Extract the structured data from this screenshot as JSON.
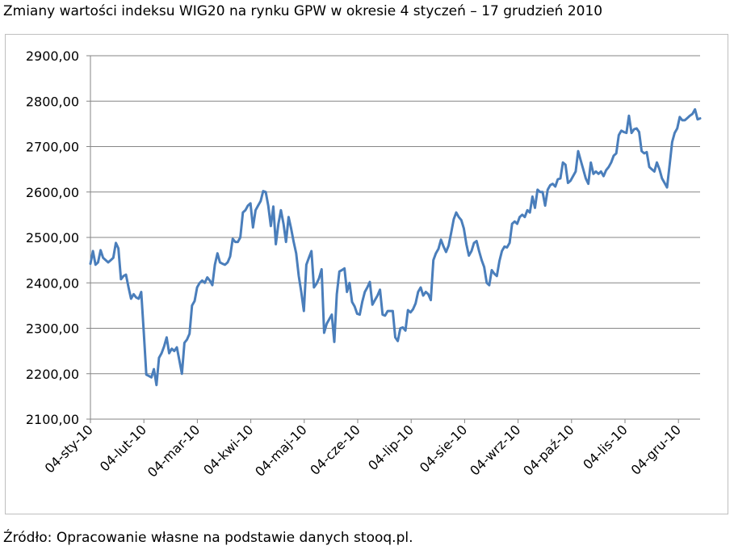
{
  "title": "Zmiany wartości indeksu WIG20 na rynku GPW w okresie 4 styczeń – 17 grudzień 2010",
  "source": "Źródło: Opracowanie własne na podstawie danych stooq.pl.",
  "colors": {
    "line": "#4a7ebb",
    "grid": "#868686",
    "axis": "#868686"
  },
  "chart_data": {
    "type": "line",
    "title": "",
    "xlabel": "",
    "ylabel": "",
    "ylim": [
      2100,
      2900
    ],
    "yticks": [
      "2100,00",
      "2200,00",
      "2300,00",
      "2400,00",
      "2500,00",
      "2600,00",
      "2700,00",
      "2800,00",
      "2900,00"
    ],
    "xticks": [
      "04-sty-10",
      "04-lut-10",
      "04-mar-10",
      "04-kwi-10",
      "04-maj-10",
      "04-cze-10",
      "04-lip-10",
      "04-sie-10",
      "04-wrz-10",
      "04-paź-10",
      "04-lis-10",
      "04-gru-10"
    ],
    "grid": true,
    "legend": "none",
    "series": [
      {
        "name": "",
        "values": [
          2442,
          2470,
          2440,
          2445,
          2472,
          2455,
          2450,
          2445,
          2450,
          2455,
          2488,
          2476,
          2408,
          2415,
          2418,
          2390,
          2365,
          2375,
          2368,
          2365,
          2380,
          2290,
          2198,
          2195,
          2192,
          2210,
          2175,
          2235,
          2245,
          2260,
          2280,
          2245,
          2255,
          2250,
          2258,
          2230,
          2200,
          2268,
          2275,
          2288,
          2350,
          2360,
          2390,
          2400,
          2405,
          2400,
          2412,
          2405,
          2395,
          2440,
          2465,
          2445,
          2442,
          2440,
          2445,
          2458,
          2497,
          2490,
          2490,
          2500,
          2555,
          2560,
          2570,
          2575,
          2522,
          2560,
          2570,
          2580,
          2602,
          2600,
          2570,
          2525,
          2568,
          2485,
          2530,
          2560,
          2530,
          2490,
          2545,
          2520,
          2490,
          2465,
          2415,
          2380,
          2338,
          2440,
          2455,
          2470,
          2390,
          2398,
          2410,
          2430,
          2290,
          2310,
          2320,
          2330,
          2270,
          2375,
          2425,
          2428,
          2432,
          2380,
          2400,
          2358,
          2348,
          2332,
          2330,
          2358,
          2380,
          2390,
          2402,
          2352,
          2362,
          2372,
          2385,
          2330,
          2328,
          2338,
          2338,
          2338,
          2280,
          2272,
          2300,
          2302,
          2295,
          2340,
          2335,
          2342,
          2355,
          2380,
          2390,
          2372,
          2380,
          2375,
          2362,
          2450,
          2465,
          2475,
          2495,
          2480,
          2468,
          2482,
          2510,
          2540,
          2555,
          2545,
          2538,
          2520,
          2485,
          2460,
          2470,
          2488,
          2492,
          2470,
          2450,
          2435,
          2400,
          2395,
          2428,
          2420,
          2415,
          2448,
          2470,
          2480,
          2478,
          2488,
          2530,
          2535,
          2530,
          2545,
          2550,
          2545,
          2560,
          2555,
          2590,
          2565,
          2605,
          2600,
          2600,
          2570,
          2605,
          2615,
          2618,
          2612,
          2628,
          2630,
          2665,
          2660,
          2620,
          2625,
          2635,
          2645,
          2690,
          2670,
          2650,
          2630,
          2618,
          2665,
          2640,
          2645,
          2640,
          2645,
          2635,
          2648,
          2655,
          2665,
          2680,
          2685,
          2725,
          2735,
          2732,
          2730,
          2768,
          2730,
          2738,
          2740,
          2732,
          2690,
          2685,
          2688,
          2655,
          2650,
          2645,
          2665,
          2650,
          2630,
          2620,
          2610,
          2660,
          2710,
          2730,
          2740,
          2765,
          2758,
          2758,
          2763,
          2768,
          2772,
          2782,
          2760,
          2762
        ]
      }
    ]
  }
}
